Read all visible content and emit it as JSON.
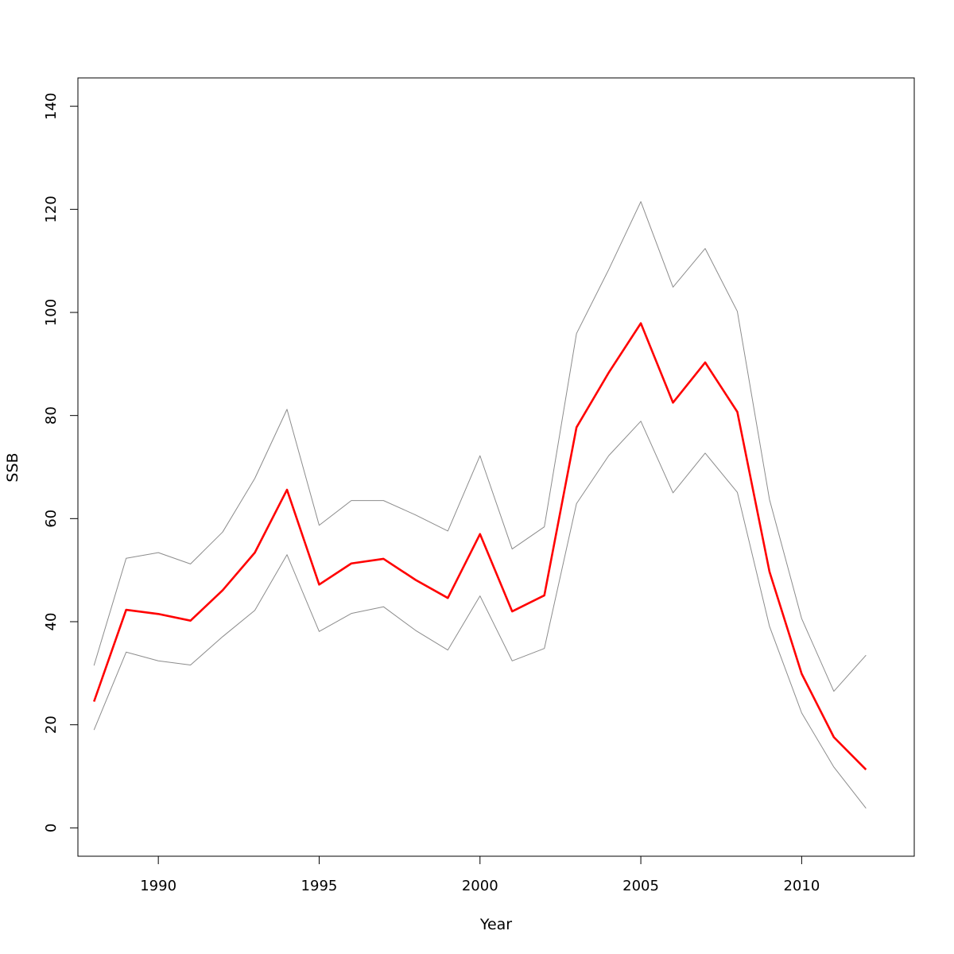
{
  "chart_data": {
    "type": "line",
    "title": "",
    "xlabel": "Year",
    "ylabel": "SSB",
    "xlim": [
      1987.5,
      2013.5
    ],
    "ylim": [
      -5.5,
      145.5
    ],
    "x_ticks": [
      1990,
      1995,
      2000,
      2005,
      2010
    ],
    "y_ticks": [
      0,
      20,
      40,
      60,
      80,
      100,
      120,
      140
    ],
    "grid": false,
    "legend": "none",
    "x": [
      1988,
      1989,
      1990,
      1991,
      1992,
      1993,
      1994,
      1995,
      1996,
      1997,
      1998,
      1999,
      2000,
      2001,
      2002,
      2003,
      2004,
      2005,
      2006,
      2007,
      2008,
      2009,
      2010,
      2011,
      2012
    ],
    "series": [
      {
        "color": "#ff0000",
        "width": 2.6,
        "values": [
          24.5,
          42.3,
          41.5,
          40.2,
          46.1,
          53.4,
          65.6,
          47.2,
          51.3,
          52.2,
          48.1,
          44.6,
          57.0,
          42.0,
          45.1,
          77.7,
          88.3,
          97.9,
          82.5,
          90.3,
          80.7,
          49.7,
          29.9,
          17.6,
          11.3
        ]
      },
      {
        "color": "#8c8c8c",
        "width": 1,
        "values": [
          31.5,
          52.3,
          53.4,
          51.2,
          57.4,
          67.8,
          81.2,
          58.7,
          63.5,
          63.5,
          60.7,
          57.6,
          72.2,
          54.1,
          58.4,
          95.9,
          108.3,
          121.5,
          104.9,
          112.4,
          100.2,
          63.7,
          40.6,
          26.5,
          33.5
        ]
      },
      {
        "color": "#8c8c8c",
        "width": 1,
        "values": [
          19.0,
          34.1,
          32.4,
          31.6,
          37.1,
          42.2,
          53.0,
          38.1,
          41.6,
          42.9,
          38.3,
          34.5,
          45.0,
          32.4,
          34.8,
          62.9,
          72.2,
          78.9,
          65.0,
          72.7,
          65.1,
          39.1,
          22.3,
          11.8,
          3.8
        ]
      }
    ]
  }
}
